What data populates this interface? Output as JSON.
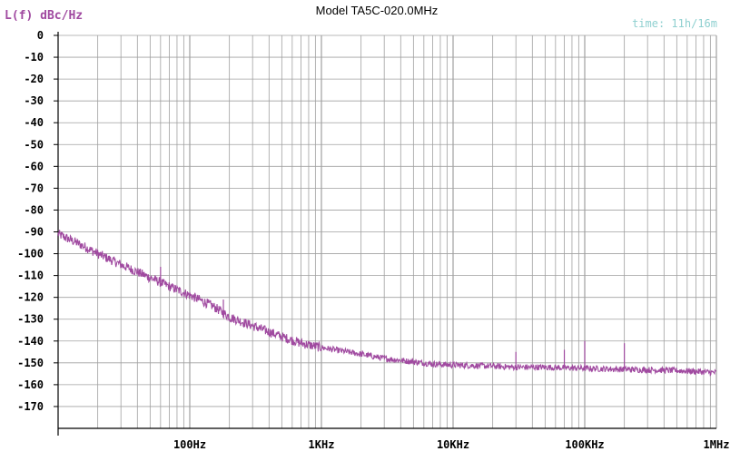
{
  "chart_data": {
    "type": "line",
    "title": "Model TA5C-020.0MHz",
    "ylabel": "L(f) dBc/Hz",
    "time_label": "time: 11h/16m",
    "x_scale": "log",
    "xlim": [
      10,
      1000000
    ],
    "ylim": [
      -180,
      0
    ],
    "y_ticks": [
      "0",
      "-10",
      "-20",
      "-30",
      "-40",
      "-50",
      "-60",
      "-70",
      "-80",
      "-90",
      "-100",
      "-110",
      "-120",
      "-130",
      "-140",
      "-150",
      "-160",
      "-170"
    ],
    "x_tick_labels": [
      {
        "value": 100,
        "label": "100Hz"
      },
      {
        "value": 1000,
        "label": "1KHz"
      },
      {
        "value": 10000,
        "label": "10KHz"
      },
      {
        "value": 100000,
        "label": "100KHz"
      },
      {
        "value": 1000000,
        "label": "1MHz"
      }
    ],
    "grid": true,
    "series": [
      {
        "color": "#a04aa0",
        "x": [
          10,
          15,
          20,
          30,
          50,
          70,
          100,
          150,
          200,
          300,
          500,
          700,
          1000,
          2000,
          3000,
          5000,
          7000,
          10000,
          20000,
          30000,
          50000,
          100000,
          200000,
          500000,
          1000000
        ],
        "y": [
          -91,
          -96,
          -100,
          -105,
          -111,
          -115,
          -119,
          -124,
          -129,
          -133,
          -138,
          -141,
          -143,
          -146,
          -148,
          -149.5,
          -150.5,
          -151,
          -151.5,
          -152,
          -152,
          -152.5,
          -153,
          -153.5,
          -154.5
        ]
      }
    ],
    "spurs": [
      {
        "x": 60,
        "y": -106
      },
      {
        "x": 180,
        "y": -121
      },
      {
        "x": 30000,
        "y": -145
      },
      {
        "x": 70000,
        "y": -144
      },
      {
        "x": 100000,
        "y": -140
      },
      {
        "x": 200000,
        "y": -141
      }
    ]
  },
  "colors": {
    "axis": "#000000",
    "grid": "#a0a0a0",
    "label": "#a04aa0",
    "time": "#8fd0d0"
  }
}
